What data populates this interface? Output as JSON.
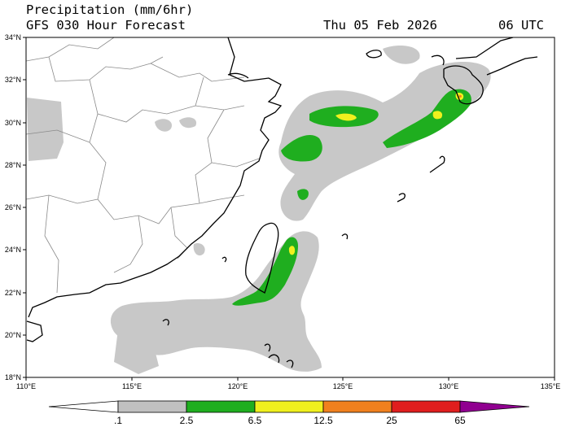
{
  "header": {
    "title": "Precipitation (mm/6hr)",
    "subtitle": "GFS 030 Hour Forecast",
    "valid_date": "Thu 05 Feb 2026",
    "valid_hour": "06 UTC"
  },
  "map": {
    "lat_ticks": [
      "34°N",
      "32°N",
      "30°N",
      "28°N",
      "26°N",
      "24°N",
      "22°N",
      "20°N",
      "18°N"
    ],
    "lon_ticks": [
      "110°E",
      "115°E",
      "120°E",
      "125°E",
      "130°E",
      "135°E"
    ]
  },
  "colorbar": {
    "labels": [
      ".1",
      "2.5",
      "6.5",
      "12.5",
      "25",
      "65"
    ],
    "colors": [
      "#ffffff",
      "#c0c0c0",
      "#1fae1f",
      "#f0f01e",
      "#f0801e",
      "#e01e1e",
      "#900090"
    ]
  }
}
